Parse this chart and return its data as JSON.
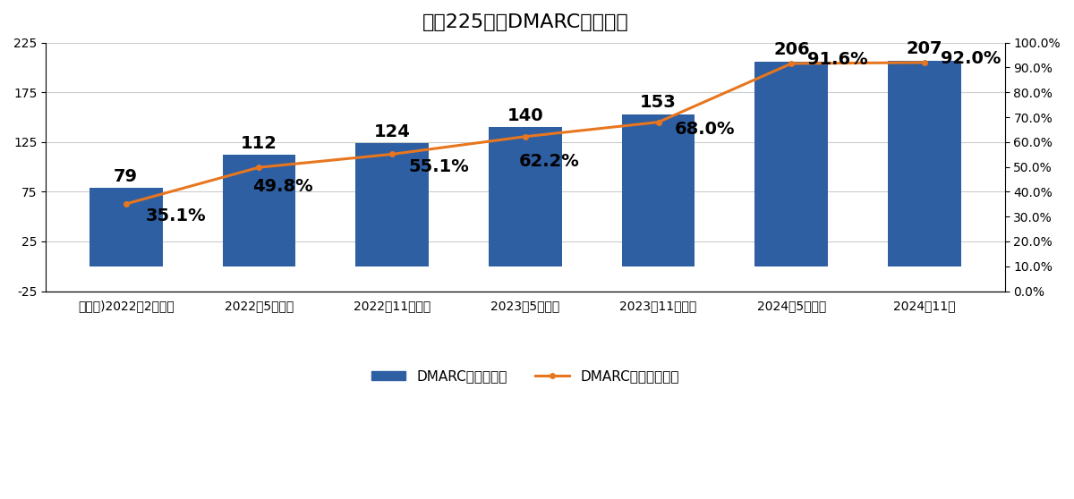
{
  "title": "日経225企業DMARC導入状況",
  "categories": [
    "（参考)2022年2月調査",
    "2022年5月調査",
    "2022年11月調査",
    "2023年5月調査",
    "2023年11月調査",
    "2024年5月調査",
    "2024年11月"
  ],
  "bar_values": [
    79,
    112,
    124,
    140,
    153,
    206,
    207
  ],
  "line_values": [
    35.1,
    49.8,
    55.1,
    62.2,
    68.0,
    91.6,
    92.0
  ],
  "line_label_offsets": [
    [
      0.15,
      -5.0
    ],
    [
      -0.05,
      -7.5
    ],
    [
      0.12,
      -5.0
    ],
    [
      -0.05,
      -10.0
    ],
    [
      0.12,
      -3.0
    ],
    [
      0.12,
      1.5
    ],
    [
      0.12,
      1.5
    ]
  ],
  "bar_color": "#2E5FA3",
  "line_color": "#E8761E",
  "bar_label_color": "#000000",
  "line_label_color": "#000000",
  "ylim_left": [
    -25,
    225
  ],
  "ylim_right": [
    0.0,
    100.0
  ],
  "yticks_left": [
    -25,
    25,
    75,
    125,
    175,
    225
  ],
  "yticks_right": [
    0.0,
    10.0,
    20.0,
    30.0,
    40.0,
    50.0,
    60.0,
    70.0,
    80.0,
    90.0,
    100.0
  ],
  "legend_bar_label": "DMARC導入企業数",
  "legend_line_label": "DMARC導入企業割合",
  "bar_label_fontsize": 14,
  "line_label_fontsize": 14,
  "title_fontsize": 16,
  "tick_label_fontsize": 10,
  "legend_fontsize": 11,
  "background_color": "#ffffff",
  "grid_color": "#cccccc"
}
